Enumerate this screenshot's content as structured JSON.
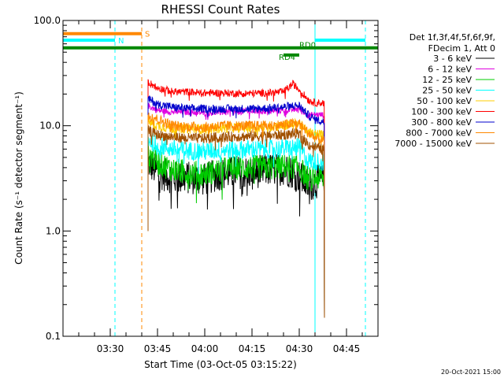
{
  "chart_data": {
    "type": "line",
    "title": "RHESSI Count Rates",
    "xlabel": "Start Time (03-Oct-05 03:15:22)",
    "ylabel": "Count Rate (s⁻¹ detector segment⁻¹)",
    "yscale": "log",
    "ylim": [
      0.1,
      100
    ],
    "xlim_minutes_after_0315": [
      0,
      100
    ],
    "x_tick_labels": [
      "03:30",
      "03:45",
      "04:00",
      "04:15",
      "04:30",
      "04:45"
    ],
    "x_tick_minutes_after_0315": [
      15,
      30,
      45,
      60,
      75,
      90
    ],
    "y_tick_labels": [
      "0.1",
      "1.0",
      "10.0",
      "100.0"
    ],
    "y_tick_values": [
      0.1,
      1,
      10,
      100
    ],
    "legend_header": [
      "Det 1f,3f,4f,5f,6f,9f,",
      "FDecim 1, Att 0"
    ],
    "legend_position": "right",
    "series": [
      {
        "name": "3 - 6 keV",
        "color": "#000000",
        "x": [
          27,
          30,
          35,
          40,
          45,
          50,
          55,
          60,
          65,
          70,
          73,
          75,
          78,
          80,
          82,
          83
        ],
        "y": [
          4.5,
          3.6,
          3.2,
          3.2,
          3.1,
          3.5,
          3.6,
          3.6,
          3.8,
          3.9,
          3.6,
          3.3,
          2.7,
          2.9,
          3.0,
          3.0
        ]
      },
      {
        "name": "6 - 12 keV",
        "color": "#e000e0",
        "x": [
          27,
          30,
          35,
          40,
          45,
          50,
          55,
          60,
          65,
          70,
          73,
          75,
          78,
          80,
          82,
          83
        ],
        "y": [
          15.5,
          14.0,
          13.5,
          13.5,
          13.2,
          13.4,
          13.6,
          13.7,
          13.8,
          14.0,
          14.2,
          14.5,
          12.5,
          12.8,
          12.7,
          12.6
        ]
      },
      {
        "name": "12 - 25 keV",
        "color": "#00cc00",
        "x": [
          27,
          30,
          35,
          40,
          45,
          50,
          55,
          60,
          65,
          70,
          73,
          75,
          78,
          80,
          82,
          83
        ],
        "y": [
          5.5,
          4.5,
          3.8,
          3.6,
          3.5,
          3.8,
          4.0,
          4.0,
          4.0,
          4.1,
          4.1,
          4.0,
          3.1,
          3.2,
          3.2,
          3.1
        ]
      },
      {
        "name": "25 - 50 keV",
        "color": "#00ffff",
        "x": [
          27,
          30,
          35,
          40,
          45,
          50,
          55,
          60,
          65,
          70,
          73,
          75,
          78,
          80,
          82,
          83
        ],
        "y": [
          7.5,
          6.5,
          6.0,
          5.8,
          5.7,
          5.9,
          5.9,
          6.0,
          6.0,
          6.1,
          6.2,
          6.2,
          4.6,
          4.6,
          4.5,
          4.5
        ]
      },
      {
        "name": "50 - 100 keV",
        "color": "#ffcc00",
        "x": [
          27,
          30,
          35,
          40,
          45,
          50,
          55,
          60,
          65,
          70,
          73,
          75,
          78,
          80,
          82,
          83
        ],
        "y": [
          11.0,
          10.0,
          9.5,
          9.4,
          9.3,
          9.5,
          9.6,
          9.7,
          9.8,
          10.0,
          10.3,
          10.5,
          8.5,
          8.3,
          8.2,
          8.0
        ]
      },
      {
        "name": "100 - 300 keV",
        "color": "#ff0000",
        "x": [
          27,
          30,
          35,
          40,
          45,
          50,
          55,
          60,
          65,
          70,
          73,
          75,
          78,
          80,
          82,
          83
        ],
        "y": [
          26.0,
          23.0,
          21.0,
          21.0,
          20.5,
          20.5,
          20.3,
          20.3,
          20.5,
          21.0,
          25.0,
          22.0,
          17.5,
          16.5,
          16.5,
          16.3
        ]
      },
      {
        "name": "300 - 800 keV",
        "color": "#0000cc",
        "x": [
          27,
          30,
          35,
          40,
          45,
          50,
          55,
          60,
          65,
          70,
          73,
          75,
          78,
          80,
          82,
          83
        ],
        "y": [
          18.0,
          16.0,
          15.0,
          14.5,
          14.5,
          14.5,
          14.5,
          14.5,
          14.7,
          15.0,
          15.5,
          15.5,
          12.5,
          11.5,
          11.0,
          10.8
        ]
      },
      {
        "name": "800 - 7000 keV",
        "color": "#ff8800",
        "x": [
          27,
          30,
          35,
          40,
          45,
          50,
          55,
          60,
          65,
          70,
          73,
          75,
          78,
          80,
          82,
          83
        ],
        "y": [
          13.0,
          11.5,
          10.0,
          9.8,
          9.7,
          10.0,
          10.0,
          10.0,
          10.0,
          10.2,
          10.5,
          10.5,
          8.5,
          7.7,
          7.3,
          7.0
        ]
      },
      {
        "name": "7000 - 15000 keV",
        "color": "#a05000",
        "x": [
          27,
          30,
          35,
          40,
          45,
          50,
          55,
          60,
          65,
          70,
          73,
          75,
          78,
          80,
          82,
          83
        ],
        "y": [
          9.0,
          8.2,
          7.8,
          7.6,
          7.6,
          7.8,
          7.9,
          7.9,
          8.0,
          8.2,
          8.4,
          8.3,
          6.6,
          6.3,
          6.0,
          5.9
        ]
      }
    ],
    "annotations": [
      {
        "label": "S",
        "color": "#ff8800",
        "x_start": 0,
        "x_end": 25,
        "y": 75
      },
      {
        "label": "N",
        "color": "#00ffff",
        "x_start": 0,
        "x_end": 16.5,
        "y": 65
      },
      {
        "label": "",
        "color": "#00ffff",
        "x_start": 80,
        "x_end": 96,
        "y": 65
      },
      {
        "label": "RD0",
        "color": "#008800",
        "x_start": 0,
        "x_end": 100,
        "y": 55
      },
      {
        "label": "RD4",
        "color": "#008800",
        "x_start": 70,
        "x_end": 75,
        "y": 47
      }
    ],
    "vlines": [
      {
        "x": 16.5,
        "color": "#00ffff",
        "style": "dashed"
      },
      {
        "x": 25,
        "color": "#ff8800",
        "style": "dashed"
      },
      {
        "x": 80,
        "color": "#00ffff",
        "style": "solid"
      },
      {
        "x": 96,
        "color": "#00ffff",
        "style": "dashed"
      }
    ]
  },
  "footer": {
    "timestamp": "20-Oct-2021 15:00"
  }
}
